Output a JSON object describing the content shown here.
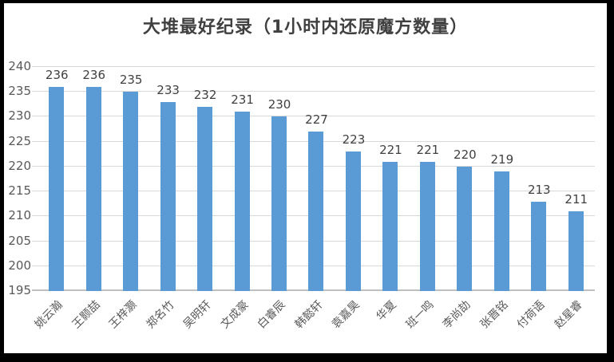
{
  "chart_data": {
    "type": "bar",
    "title": "大堆最好纪录（1小时内还原魔方数量）",
    "categories": [
      "姚云瀚",
      "王颢喆",
      "王梓灏",
      "郑名竹",
      "吴明轩",
      "文成豪",
      "白睿辰",
      "韩懿轩",
      "袁嘉昊",
      "华夏",
      "班一鸣",
      "李尚劼",
      "张晋铭",
      "付荷语",
      "赵星睿"
    ],
    "values": [
      236,
      236,
      235,
      233,
      232,
      231,
      230,
      227,
      223,
      221,
      221,
      220,
      219,
      213,
      211
    ],
    "xlabel": "",
    "ylabel": "",
    "ylim": [
      195,
      240
    ],
    "ytick_step": 5,
    "grid": true,
    "data_labels": true,
    "legend_position": "none",
    "colors": {
      "bar": "#5b9bd5",
      "title_text": "#404040",
      "data_label_text": "#404040",
      "axis_text": "#595959",
      "gridline": "#d9d9d9",
      "axis_line": "#bfbfbf",
      "frame_border": "#000000",
      "background": "#ffffff"
    }
  }
}
